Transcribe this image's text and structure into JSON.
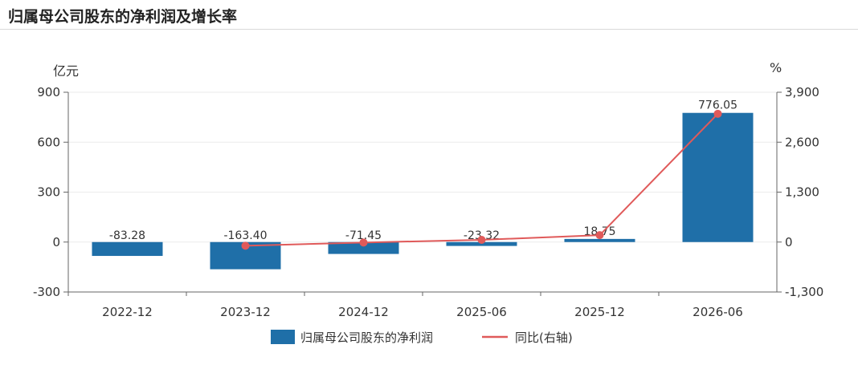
{
  "title": "归属母公司股东的净利润及增长率",
  "chart_data": {
    "type": "bar",
    "categories": [
      "2022-12",
      "2023-12",
      "2024-12",
      "2025-06",
      "2025-12",
      "2026-06"
    ],
    "series": [
      {
        "name": "归属母公司股东的净利润",
        "kind": "bar",
        "axis": "left",
        "color": "#1f6fa8",
        "values": [
          -83.28,
          -163.4,
          -71.45,
          -23.32,
          18.75,
          776.05
        ],
        "labels": [
          "-83.28",
          "-163.40",
          "-71.45",
          "-23.32",
          "18.75",
          "776.05"
        ]
      },
      {
        "name": "同比(右轴)",
        "kind": "line",
        "axis": "right",
        "color": "#e05a5a",
        "values": [
          null,
          -96,
          -12,
          57,
          180,
          3340
        ]
      }
    ],
    "left_axis": {
      "unit": "亿元",
      "min": -300,
      "max": 900,
      "ticks": [
        900,
        600,
        300,
        0,
        -300
      ],
      "tick_labels": [
        "900",
        "600",
        "300",
        "0",
        "-300"
      ]
    },
    "right_axis": {
      "unit": "%",
      "min": -1300,
      "max": 3900,
      "ticks": [
        3900,
        2600,
        1300,
        0,
        -1300
      ],
      "tick_labels": [
        "3,900",
        "2,600",
        "1,300",
        "0",
        "-1,300"
      ]
    },
    "legend_position": "bottom-center",
    "grid": true
  }
}
